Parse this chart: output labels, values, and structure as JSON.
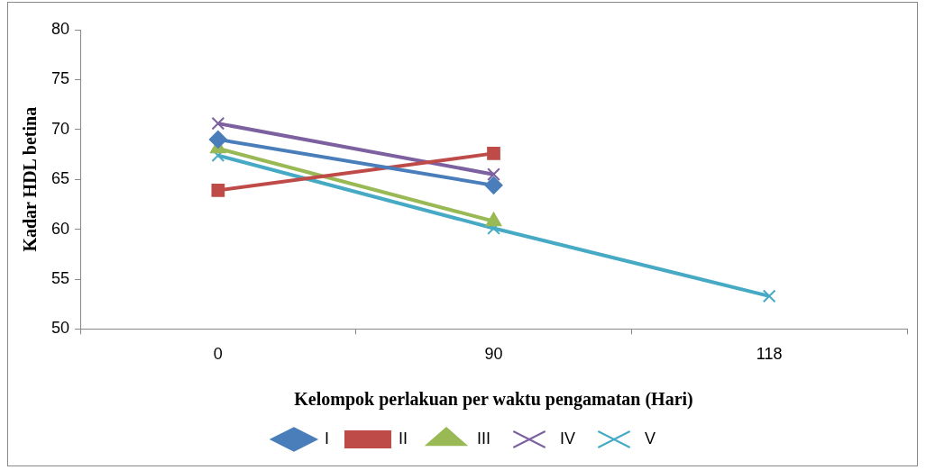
{
  "chart_data": {
    "type": "line",
    "xlabel": "Kelompok perlakuan per waktu pengamatan (Hari)",
    "ylabel": "Kadar HDL betina",
    "categories": [
      "0",
      "90",
      "118"
    ],
    "series": [
      {
        "name": "I",
        "color": "#4a7ebb",
        "marker": "diamond",
        "values": [
          69.0,
          64.4,
          null
        ]
      },
      {
        "name": "II",
        "color": "#be4b48",
        "marker": "square",
        "values": [
          63.9,
          67.6,
          null
        ]
      },
      {
        "name": "III",
        "color": "#98b954",
        "marker": "triangle",
        "values": [
          68.1,
          60.8,
          null
        ]
      },
      {
        "name": "IV",
        "color": "#7d60a0",
        "marker": "cross",
        "values": [
          70.6,
          65.5,
          null
        ]
      },
      {
        "name": "V",
        "color": "#46aac5",
        "marker": "cross",
        "values": [
          67.4,
          60.1,
          53.3
        ]
      }
    ],
    "ylim": [
      50,
      80
    ],
    "yticks": [
      50,
      55,
      60,
      65,
      70,
      75,
      80
    ],
    "grid": false,
    "legend": "bottom",
    "line_style": "solid"
  }
}
